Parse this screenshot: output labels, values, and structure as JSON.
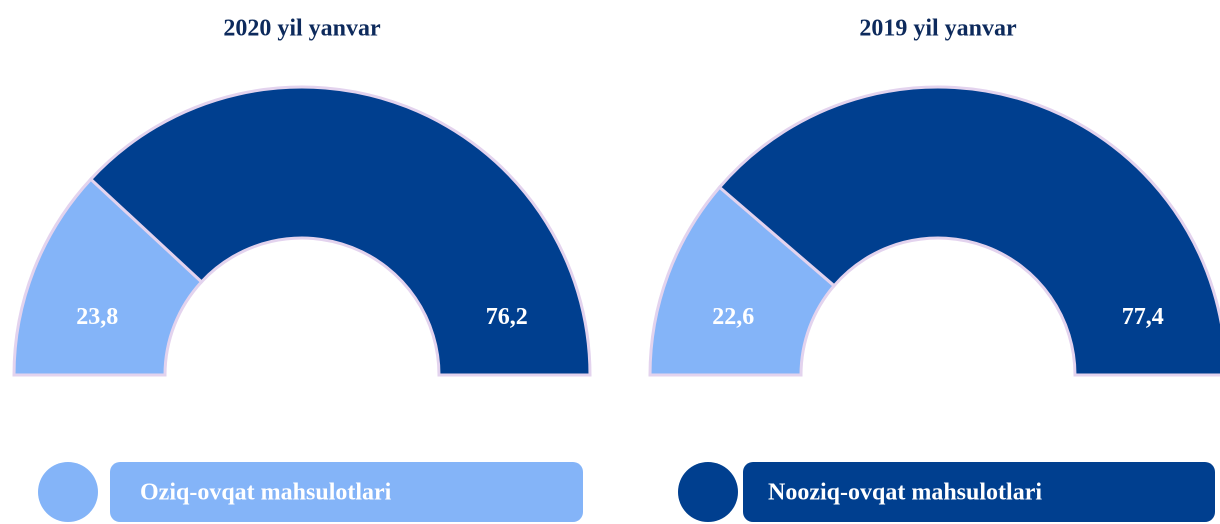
{
  "chart_data": [
    {
      "type": "semi-donut",
      "title": "2020 yil yanvar",
      "categories": [
        "Oziq-ovqat mahsulotlari",
        "Nooziq-ovqat mahsulotlari"
      ],
      "values": [
        23.8,
        76.2
      ],
      "value_labels": [
        "23,8",
        "76,2"
      ],
      "colors": [
        "#84b4f8",
        "#003f8f"
      ]
    },
    {
      "type": "semi-donut",
      "title": "2019 yil yanvar",
      "categories": [
        "Oziq-ovqat mahsulotlari",
        "Nooziq-ovqat mahsulotlari"
      ],
      "values": [
        22.6,
        77.4
      ],
      "value_labels": [
        "22,6",
        "77,4"
      ],
      "colors": [
        "#84b4f8",
        "#003f8f"
      ]
    }
  ]
}
